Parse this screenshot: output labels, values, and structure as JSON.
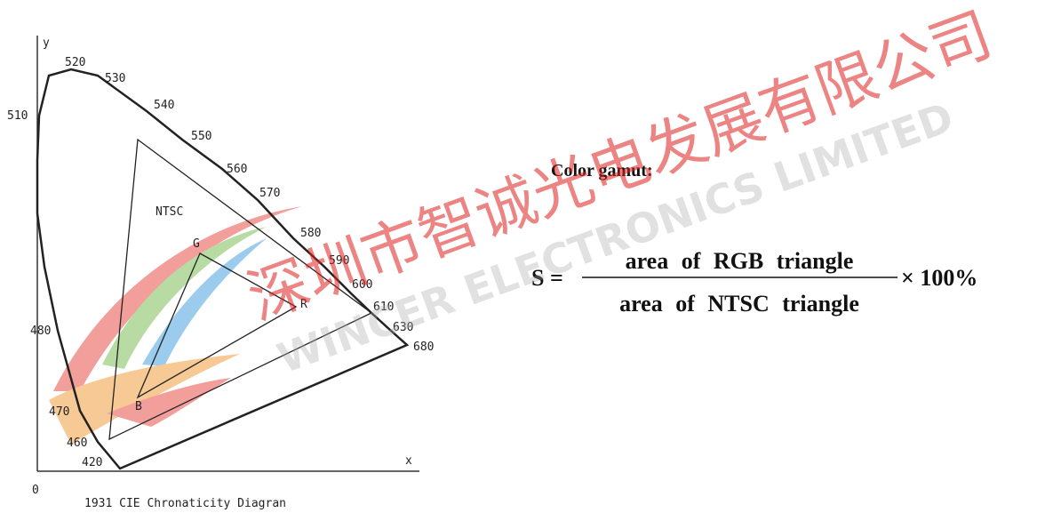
{
  "axes": {
    "y_label": "y",
    "x_label": "x",
    "origin": "0"
  },
  "wavelength_labels": [
    "520",
    "530",
    "540",
    "550",
    "560",
    "570",
    "580",
    "590",
    "600",
    "610",
    "630",
    "680",
    "510",
    "480",
    "470",
    "460",
    "420"
  ],
  "ntsc_label": "NTSC",
  "vertices": {
    "g": "G",
    "r": "R",
    "b": "B"
  },
  "caption": "1931 CIE Chronaticity Diagran",
  "gamut": {
    "title": "Color gamut:",
    "lhs": "S =",
    "numerator": "area of RGB triangle",
    "denominator": "area of NTSC triangle",
    "factor": "× 100%"
  },
  "watermark": {
    "chinese": "深圳市智诚光电发展有限公司",
    "english": "WINCER ELECTRONICS LIMITED"
  }
}
